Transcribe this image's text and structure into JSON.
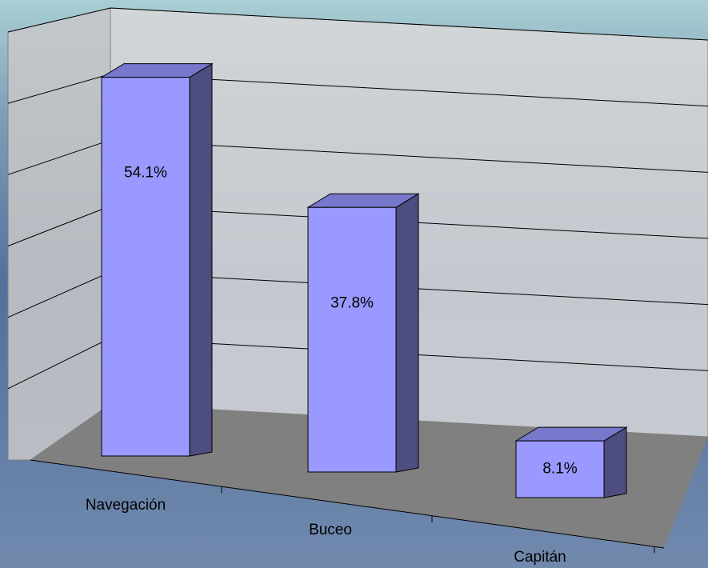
{
  "chart_data": {
    "type": "bar3d",
    "categories": [
      "Navegación",
      "Buceo",
      "Capitán"
    ],
    "values": [
      54.1,
      37.8,
      8.1
    ],
    "value_labels": [
      "54.1%",
      "37.8%",
      "8.1%"
    ],
    "color": "#9999ff",
    "ylim": [
      0,
      60
    ],
    "yticks": [
      0,
      10,
      20,
      30,
      40,
      50,
      60
    ],
    "grid": true
  }
}
